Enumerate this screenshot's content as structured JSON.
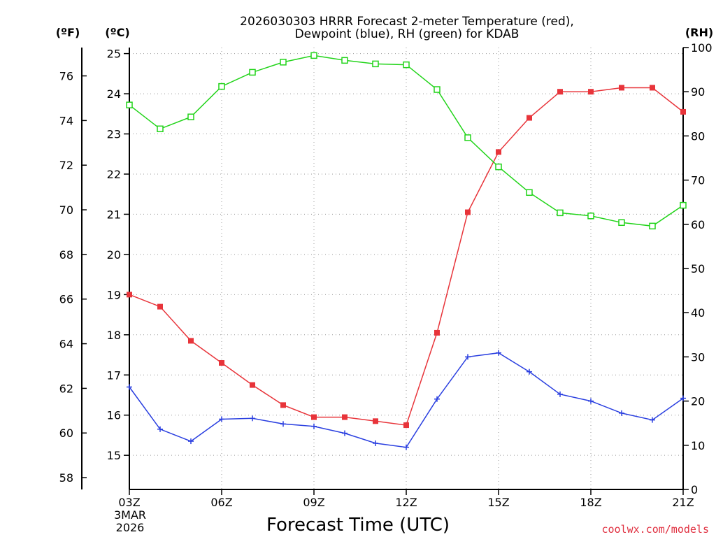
{
  "chart_data": {
    "type": "line",
    "title_line1": "2026030303 HRRR Forecast 2-meter Temperature (red),",
    "title_line2": "Dewpoint (blue), RH (green) for KDAB",
    "xlabel": "Forecast Time (UTC)",
    "date_label_line1": "3MAR",
    "date_label_line2": "2026",
    "credit": "coolwx.com/models",
    "left_outer_unit": "(ºF)",
    "left_inner_unit": "(ºC)",
    "right_unit": "(RH)",
    "x_hours": [
      3,
      4,
      5,
      6,
      7,
      8,
      9,
      10,
      11,
      12,
      13,
      14,
      15,
      16,
      17,
      18,
      19,
      20,
      21
    ],
    "x_ticks": [
      {
        "hour": 3,
        "label": "03Z"
      },
      {
        "hour": 6,
        "label": "06Z"
      },
      {
        "hour": 9,
        "label": "09Z"
      },
      {
        "hour": 12,
        "label": "12Z"
      },
      {
        "hour": 15,
        "label": "15Z"
      },
      {
        "hour": 18,
        "label": "18Z"
      },
      {
        "hour": 21,
        "label": "21Z"
      }
    ],
    "xlim": [
      3,
      21
    ],
    "celsius_axis": {
      "ylim": [
        14.15,
        25.15
      ],
      "ticks": [
        15,
        16,
        17,
        18,
        19,
        20,
        21,
        22,
        23,
        24,
        25
      ]
    },
    "fahrenheit_axis": {
      "ticks": [
        58,
        60,
        62,
        64,
        66,
        68,
        70,
        72,
        74,
        76
      ]
    },
    "rh_axis": {
      "ylim": [
        0,
        100
      ],
      "ticks": [
        0,
        10,
        20,
        30,
        40,
        50,
        60,
        70,
        80,
        90,
        100
      ]
    },
    "series": [
      {
        "name": "2-meter Temperature",
        "unit": "C",
        "color": "#e8343a",
        "marker": "filled-square",
        "values": [
          19.0,
          18.7,
          17.85,
          17.3,
          16.75,
          16.25,
          15.95,
          15.95,
          15.85,
          15.75,
          18.05,
          21.05,
          22.55,
          23.4,
          24.05,
          24.05,
          24.15,
          24.15,
          23.55
        ]
      },
      {
        "name": "Dewpoint",
        "unit": "C",
        "color": "#2a3fe0",
        "marker": "plus",
        "values": [
          16.7,
          15.65,
          15.35,
          15.9,
          15.92,
          15.78,
          15.72,
          15.55,
          15.3,
          15.2,
          16.4,
          17.45,
          17.55,
          17.08,
          16.52,
          16.35,
          16.05,
          15.88,
          16.42
        ]
      },
      {
        "name": "RH",
        "unit": "%",
        "color": "#22d41a",
        "marker": "open-square",
        "values": [
          87.0,
          81.6,
          84.3,
          91.2,
          94.4,
          96.7,
          98.2,
          97.1,
          96.3,
          96.1,
          90.5,
          79.6,
          73.0,
          67.2,
          62.6,
          61.9,
          60.4,
          59.6,
          64.3
        ]
      }
    ]
  }
}
